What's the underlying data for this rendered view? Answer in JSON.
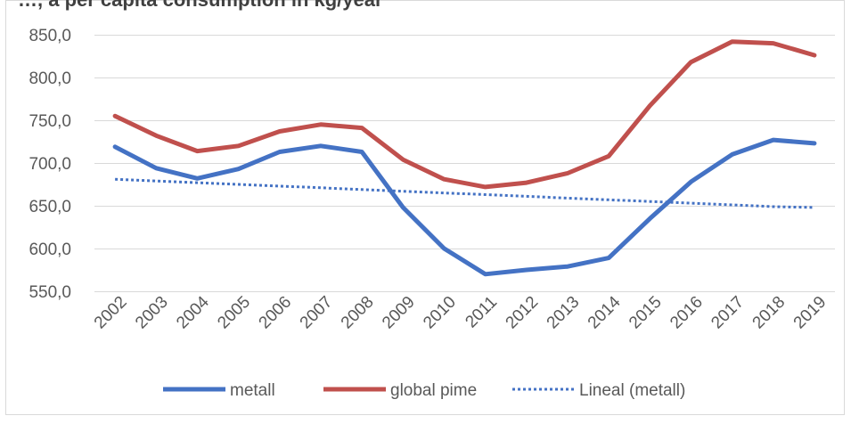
{
  "chart_data": {
    "type": "line",
    "title": "…, a per capita consumption in kg/year",
    "categories": [
      "2002",
      "2003",
      "2004",
      "2005",
      "2006",
      "2007",
      "2008",
      "2009",
      "2010",
      "2011",
      "2012",
      "2013",
      "2014",
      "2015",
      "2016",
      "2017",
      "2018",
      "2019"
    ],
    "series": [
      {
        "name": "metall",
        "color": "#4472C4",
        "style": "solid",
        "values": [
          719,
          694,
          682,
          693,
          713,
          720,
          713,
          648,
          600,
          570,
          575,
          579,
          589,
          635,
          678,
          710,
          727,
          723
        ]
      },
      {
        "name": "global pime",
        "color": "#C0504D",
        "style": "solid",
        "values": [
          755,
          732,
          714,
          720,
          737,
          745,
          741,
          704,
          681,
          672,
          677,
          688,
          708,
          767,
          818,
          842,
          840,
          826
        ]
      },
      {
        "name": "Lineal (metall)",
        "color": "#4472C4",
        "style": "dotted",
        "values": [
          681,
          679,
          677,
          675,
          673,
          671,
          669,
          667,
          665,
          663,
          661,
          659,
          657,
          655,
          653,
          651,
          649,
          648
        ]
      }
    ],
    "ylim": [
      550,
      850
    ],
    "yticks": [
      550,
      600,
      650,
      700,
      750,
      800,
      850
    ],
    "ytick_labels": [
      "550,0",
      "600,0",
      "650,0",
      "700,0",
      "750,0",
      "800,0",
      "850,0"
    ],
    "grid": true,
    "legend_position": "bottom"
  }
}
